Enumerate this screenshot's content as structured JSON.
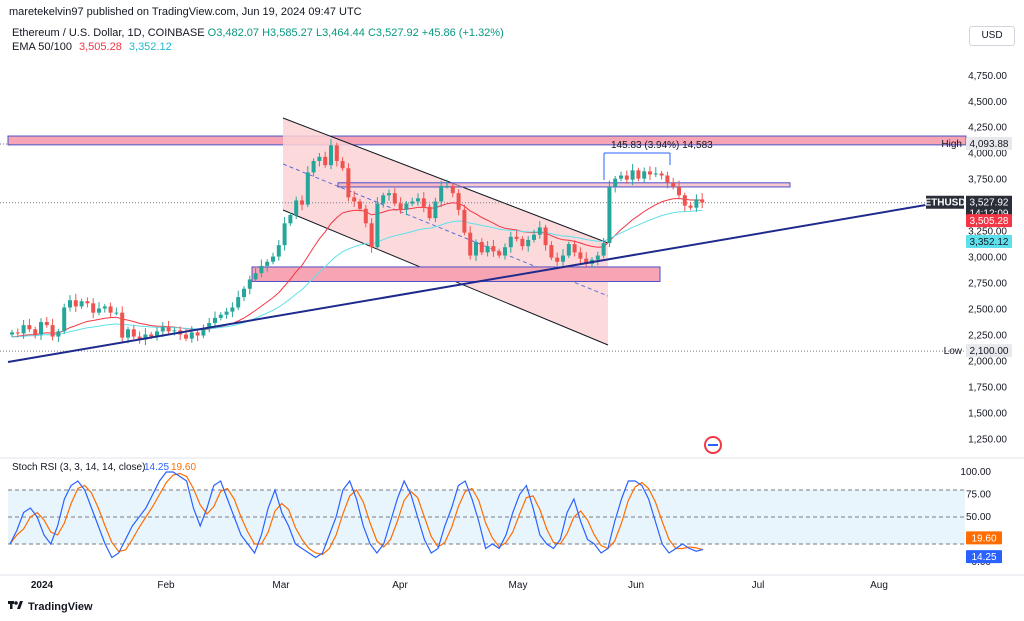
{
  "publisher_line": "maretekelvin97 published on TradingView.com, Jun 19, 2024 09:47 UTC",
  "header": {
    "symbol_line": "Ethereum / U.S. Dollar, 1D, COINBASE",
    "ohlc": {
      "O": "3,482.07",
      "H": "3,585.27",
      "L": "3,464.44",
      "C": "3,527.92",
      "change": "+45.86 (+1.32%)"
    },
    "ema_label": "EMA 50/100",
    "ema50": "3,505.28",
    "ema100": "3,352.12",
    "currency": "USD"
  },
  "colors": {
    "up": "#26a69a",
    "down": "#ef5350",
    "ema50": "#f23645",
    "ema100": "#5ee0ec",
    "trendline": "#1e2a8c",
    "zone": "#f7a5b4",
    "channel": "#fbd3d6",
    "stoch_k": "#2962ff",
    "stoch_d": "#ff6d00",
    "price_tag": "#2a2e39"
  },
  "chart_data": [
    {
      "type": "candlestick",
      "symbol": "ETHUSD",
      "timeframe": "1D",
      "price_scale_ticks": [
        "4,750.00",
        "4,500.00",
        "4,250.00",
        "4,000.00",
        "3,750.00",
        "3,250.00",
        "3,000.00",
        "2,750.00",
        "2,500.00",
        "2,250.00",
        "2,000.00",
        "1,750.00",
        "1,500.00",
        "1,250.00"
      ],
      "tick_values": [
        4750,
        4500,
        4250,
        4000,
        3750,
        3250,
        3000,
        2750,
        2500,
        2250,
        2000,
        1750,
        1500,
        1250
      ],
      "ylim": [
        1100,
        4950
      ],
      "time_labels": [
        "2024",
        "Feb",
        "Mar",
        "Apr",
        "May",
        "Jun",
        "Jul",
        "Aug"
      ],
      "high_label": "High",
      "high_value": "4,093.88",
      "high_num": 4093.88,
      "low_label": "Low",
      "low_value": "2,100.00",
      "low_num": 2100,
      "last_price_label": "ETHUSD",
      "last_price": "3,527.92",
      "last_num": 3527.92,
      "countdown": "14:12:09",
      "ema50_last": "3,505.28",
      "ema50_num": 3505.28,
      "ema100_last": "3,352.12",
      "ema100_num": 3352.12,
      "measure_label": "145.83 (3.94%) 14,583",
      "closes": [
        2280,
        2270,
        2350,
        2310,
        2260,
        2380,
        2350,
        2240,
        2290,
        2520,
        2590,
        2530,
        2580,
        2560,
        2470,
        2510,
        2530,
        2470,
        2470,
        2230,
        2310,
        2240,
        2210,
        2260,
        2240,
        2290,
        2330,
        2290,
        2300,
        2260,
        2220,
        2280,
        2250,
        2320,
        2370,
        2420,
        2450,
        2480,
        2520,
        2620,
        2700,
        2790,
        2850,
        2920,
        2960,
        3010,
        3120,
        3330,
        3410,
        3550,
        3510,
        3820,
        3930,
        3970,
        3890,
        4080,
        3930,
        3860,
        3580,
        3540,
        3470,
        3330,
        3100,
        3520,
        3600,
        3620,
        3520,
        3460,
        3520,
        3540,
        3570,
        3490,
        3380,
        3540,
        3690,
        3690,
        3620,
        3460,
        3240,
        3020,
        3150,
        3050,
        3110,
        3060,
        3020,
        3100,
        3200,
        3180,
        3110,
        3170,
        3220,
        3290,
        3120,
        3000,
        2960,
        3020,
        3130,
        3050,
        2990,
        2940,
        2980,
        3020,
        3140,
        3680,
        3760,
        3790,
        3750,
        3840,
        3760,
        3830,
        3800,
        3810,
        3790,
        3720,
        3680,
        3600,
        3500,
        3480,
        3560,
        3530
      ]
    },
    {
      "type": "line",
      "name": "Stoch RSI (3, 3, 14, 14, close)",
      "series": [
        {
          "name": "K",
          "last": "14.25",
          "last_num": 14.25
        },
        {
          "name": "D",
          "last": "19.60",
          "last_num": 19.6
        }
      ],
      "ticks": [
        "100.00",
        "75.00",
        "50.00",
        "0.00"
      ],
      "tick_values": [
        100,
        75,
        50,
        0
      ],
      "band": [
        20,
        80
      ],
      "ylim": [
        0,
        100
      ],
      "k_values": [
        20,
        35,
        55,
        60,
        50,
        30,
        20,
        40,
        70,
        85,
        90,
        80,
        60,
        40,
        20,
        5,
        10,
        25,
        40,
        50,
        60,
        75,
        90,
        100,
        100,
        95,
        90,
        60,
        40,
        60,
        85,
        90,
        70,
        50,
        30,
        20,
        10,
        30,
        60,
        80,
        55,
        40,
        20,
        15,
        10,
        5,
        10,
        30,
        50,
        80,
        90,
        70,
        40,
        20,
        10,
        20,
        45,
        70,
        90,
        75,
        50,
        25,
        10,
        15,
        40,
        60,
        85,
        90,
        70,
        45,
        15,
        20,
        15,
        30,
        55,
        75,
        85,
        60,
        30,
        20,
        15,
        25,
        55,
        70,
        45,
        25,
        20,
        10,
        15,
        45,
        70,
        90,
        90,
        85,
        70,
        45,
        20,
        10,
        15,
        20,
        15,
        12,
        14
      ]
    }
  ]
}
